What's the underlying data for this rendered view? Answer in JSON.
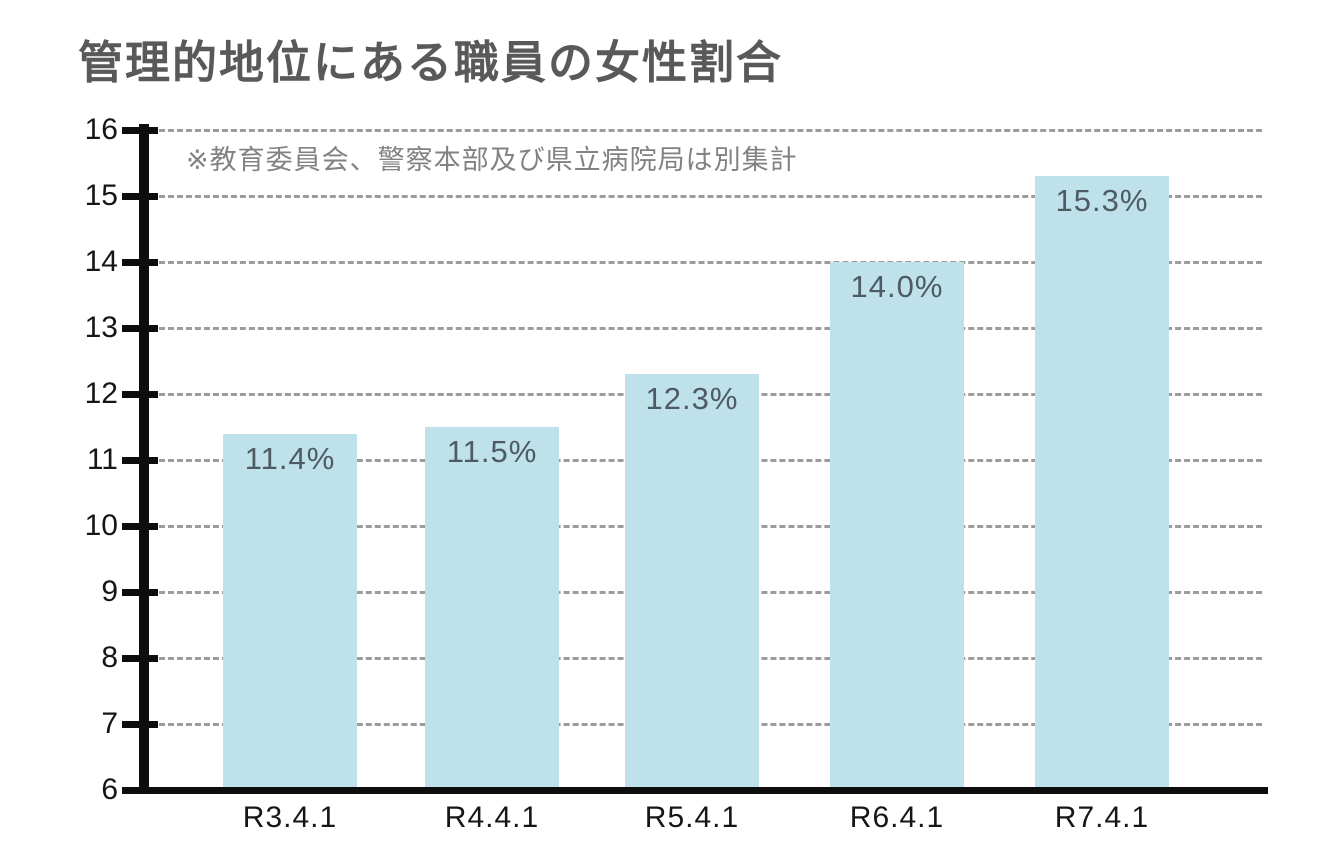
{
  "chart_data": {
    "type": "bar",
    "title": "管理的地位にある職員の女性割合",
    "note": "※教育委員会、警察本部及び県立病院局は別集計",
    "categories": [
      "R3.4.1",
      "R4.4.1",
      "R5.4.1",
      "R6.4.1",
      "R7.4.1"
    ],
    "values": [
      11.4,
      11.5,
      12.3,
      14.0,
      15.3
    ],
    "value_labels": [
      "11.4%",
      "11.5%",
      "12.3%",
      "14.0%",
      "15.3%"
    ],
    "unit": "%",
    "ylim": [
      6,
      16
    ],
    "yticks": [
      6,
      7,
      8,
      9,
      10,
      11,
      12,
      13,
      14,
      15,
      16
    ],
    "grid": "horizontal dashed, at every integer from 7 to 16",
    "legend": "none",
    "xlabel": "",
    "ylabel": "",
    "colors": {
      "bar_fill": "#bfe1eb",
      "value_label": "#4e5b64",
      "title": "#595959",
      "note": "#828282",
      "axis": "#0d0d0d",
      "gridline": "#9c9c9c",
      "tick_label": "#161616"
    }
  }
}
